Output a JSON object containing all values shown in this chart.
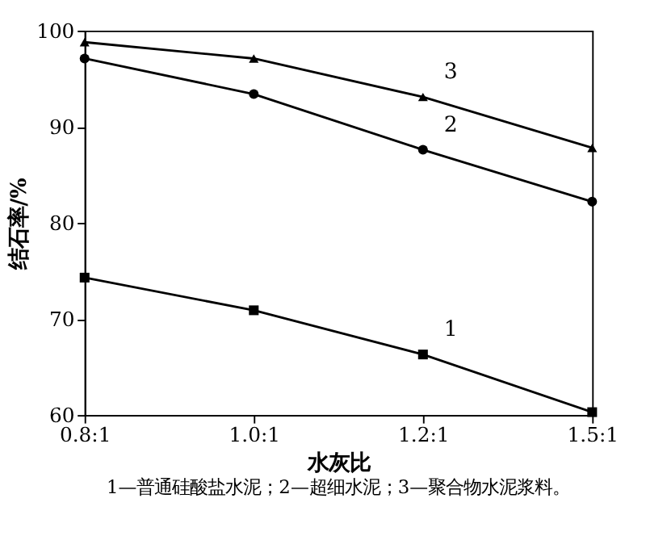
{
  "chart_data": {
    "type": "line",
    "xlabel": "水灰比",
    "ylabel": "结石率/%",
    "categories": [
      "0.8:1",
      "1.0:1",
      "1.2:1",
      "1.5:1"
    ],
    "series": [
      {
        "color": "#000000",
        "marker": "square",
        "values": [
          74.3,
          70.9,
          66.3,
          60.3
        ]
      },
      {
        "color": "#000000",
        "marker": "circle",
        "values": [
          97.1,
          93.4,
          87.6,
          82.2
        ]
      },
      {
        "color": "#000000",
        "marker": "triangle",
        "values": [
          98.8,
          97.1,
          93.1,
          87.8
        ]
      }
    ],
    "ylim": [
      60,
      100
    ],
    "yticks": [
      60,
      70,
      80,
      90,
      100
    ],
    "grid": false,
    "line_style": "solid",
    "annotations": [
      {
        "text": "1",
        "x": "1.2:1",
        "y": 66.3
      },
      {
        "text": "2",
        "x": "1.2:1",
        "y": 87.6
      },
      {
        "text": "3",
        "x": "1.2:1",
        "y": 93.1
      },
      "1—普通硅酸盐水泥；2—超细水泥；3—聚合物水泥浆料。"
    ]
  }
}
